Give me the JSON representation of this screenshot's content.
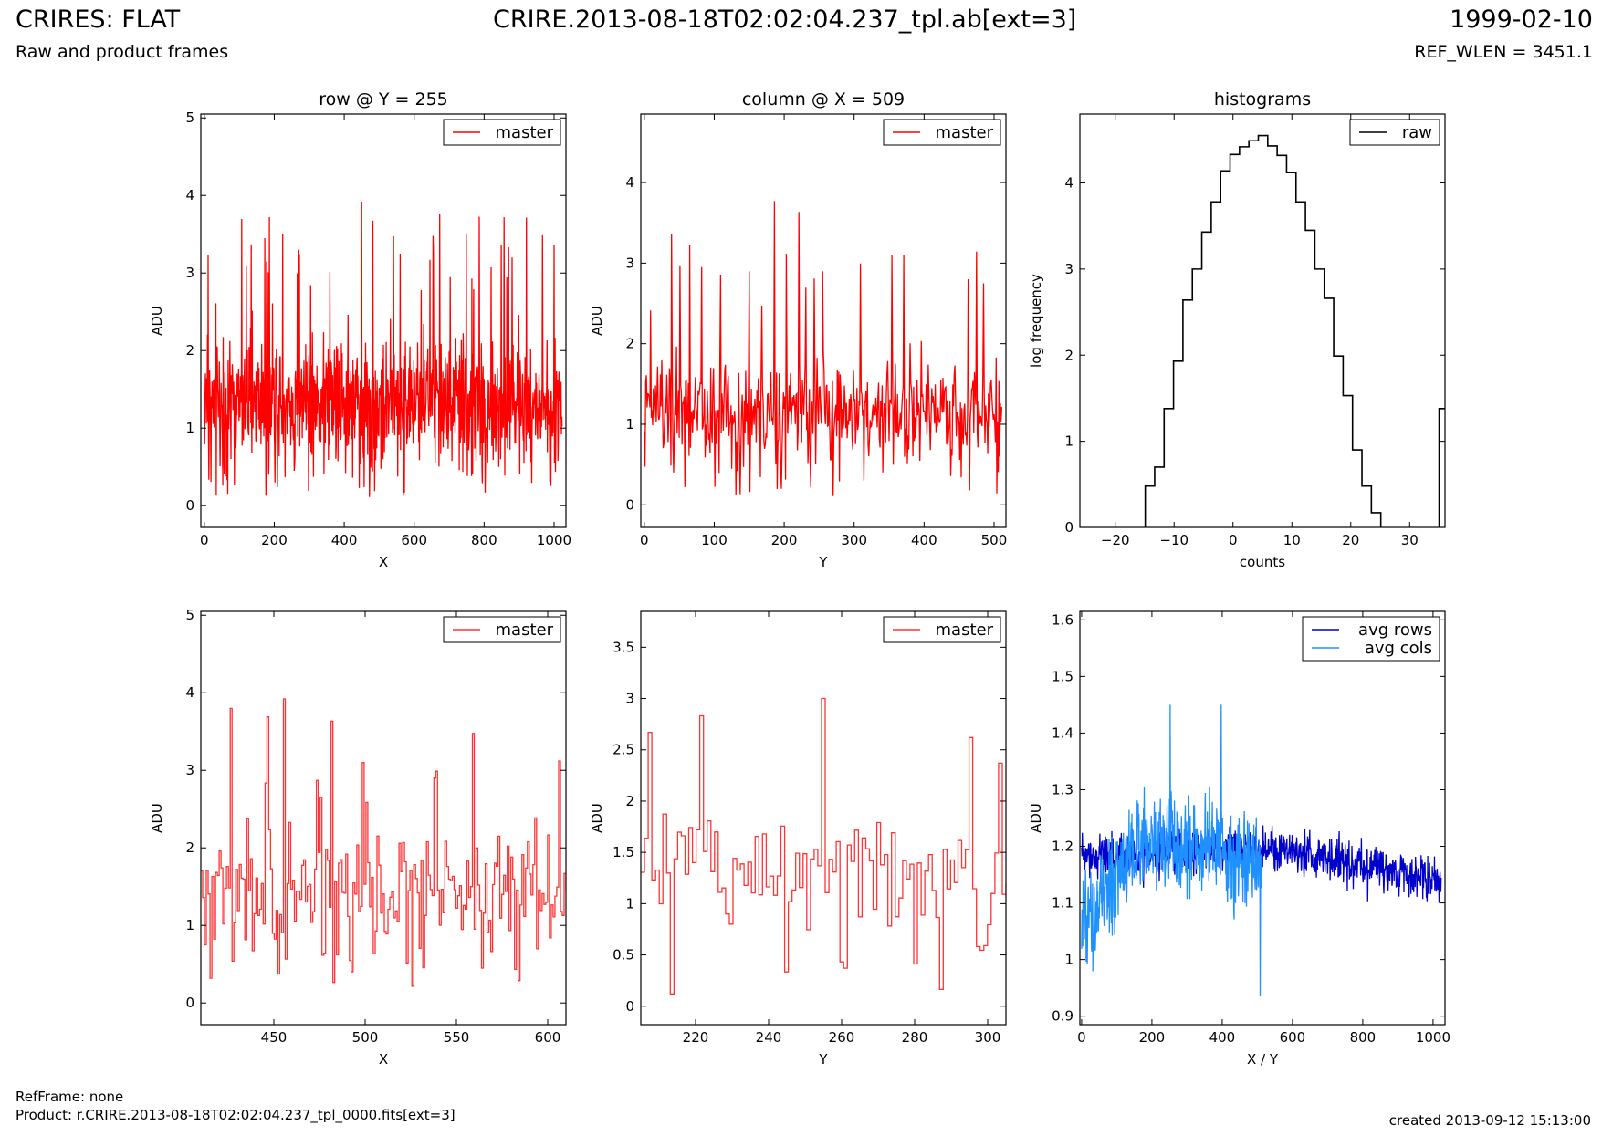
{
  "header": {
    "title_left": "CRIRES: FLAT",
    "title_center": "CRIRE.2013-08-18T02:02:04.237_tpl.ab[ext=3]",
    "title_right": "1999-02-10",
    "subtitle_left": "Raw and product frames",
    "subtitle_right": "REF_WLEN = 3451.1"
  },
  "footer": {
    "refframe": "RefFrame: none",
    "product": "Product: r.CRIRE.2013-08-18T02:02:04.237_tpl_0000.fits[ext=3]",
    "created": "created 2013-09-12 15:13:00"
  },
  "colors": {
    "red": "#ff0000",
    "red_light": "#ff3333",
    "blue": "#0000cc",
    "light_blue": "#1e90ff",
    "black": "#000000"
  },
  "chart_data": [
    {
      "type": "line",
      "title": "row @ Y = 255",
      "xlabel": "X",
      "ylabel": "ADU",
      "xlim": [
        -10,
        1034
      ],
      "ylim": [
        -0.28,
        5.05
      ],
      "xticks": [
        0,
        200,
        400,
        600,
        800,
        1000
      ],
      "yticks": [
        0,
        1,
        2,
        3,
        4,
        5
      ],
      "legend": "top-right",
      "series": [
        {
          "name": "master",
          "color": "#ff0000",
          "mode": "noise",
          "x_range": [
            0,
            1023
          ],
          "n": 1024,
          "mean": 1.35,
          "sigma": 0.55,
          "min": 0.1,
          "max": 3.9,
          "peaks": [
            [
              186,
              3.72
            ],
            [
              450,
              3.92
            ],
            [
              1000,
              3.36
            ],
            [
              270,
              3.3
            ],
            [
              560,
              3.25
            ],
            [
              655,
              3.28
            ],
            [
              880,
              3.2
            ],
            [
              120,
              3.1
            ]
          ]
        }
      ]
    },
    {
      "type": "line",
      "title": "column @ X = 509",
      "xlabel": "Y",
      "ylabel": "ADU",
      "xlim": [
        -5,
        517
      ],
      "ylim": [
        -0.28,
        4.85
      ],
      "xticks": [
        0,
        100,
        200,
        300,
        400,
        500
      ],
      "yticks": [
        0,
        1,
        2,
        3,
        4
      ],
      "legend": "top-right",
      "series": [
        {
          "name": "master",
          "color": "#ff0000",
          "mode": "noise",
          "x_range": [
            0,
            511
          ],
          "n": 512,
          "mean": 1.15,
          "sigma": 0.45,
          "min": 0.1,
          "max": 3.8,
          "peaks": [
            [
              186,
              3.77
            ],
            [
              82,
              2.95
            ],
            [
              354,
              3.1
            ],
            [
              255,
              2.9
            ],
            [
              150,
              2.9
            ],
            [
              463,
              2.8
            ]
          ]
        }
      ]
    },
    {
      "type": "step",
      "title": "histograms",
      "xlabel": "counts",
      "ylabel": "log frequency",
      "xlim": [
        -26,
        36
      ],
      "ylim": [
        0,
        4.8
      ],
      "xticks": [
        -20,
        -10,
        0,
        10,
        20,
        30
      ],
      "yticks": [
        0,
        1,
        2,
        3,
        4
      ],
      "legend": "top-right",
      "series": [
        {
          "name": "raw",
          "color": "#000000",
          "mode": "hist",
          "edges": [
            -14.9,
            -13.3,
            -11.7,
            -10.1,
            -8.5,
            -6.9,
            -5.3,
            -3.7,
            -2.1,
            -0.5,
            1.1,
            2.7,
            4.3,
            5.9,
            7.5,
            9.1,
            10.7,
            12.3,
            13.9,
            15.5,
            17.1,
            18.7,
            20.3,
            21.9,
            23.5,
            25.1
          ],
          "values": [
            0.48,
            0.7,
            1.38,
            1.93,
            2.64,
            3.0,
            3.43,
            3.78,
            4.14,
            4.33,
            4.42,
            4.49,
            4.55,
            4.43,
            4.32,
            4.12,
            3.78,
            3.45,
            3.0,
            2.66,
            1.99,
            1.53,
            0.9,
            0.48,
            0.17
          ],
          "extra_bins": [
            [
              35.0,
              36.0,
              1.38
            ]
          ]
        }
      ]
    },
    {
      "type": "step",
      "xlabel": "X",
      "ylabel": "ADU",
      "xlim": [
        410,
        610
      ],
      "ylim": [
        -0.28,
        5.05
      ],
      "xticks": [
        450,
        500,
        550,
        600
      ],
      "yticks": [
        0,
        1,
        2,
        3,
        4,
        5
      ],
      "legend": "top-right",
      "series": [
        {
          "name": "master",
          "color": "#ff3333",
          "mode": "noise-step",
          "x_range": [
            410,
            610
          ],
          "n": 200,
          "mean": 1.4,
          "sigma": 0.55,
          "min": 0.1,
          "max": 3.92,
          "peaks": [
            [
              455,
              3.92
            ],
            [
              498,
              3.1
            ],
            [
              538,
              2.9
            ],
            [
              606,
              3.12
            ],
            [
              475,
              2.65
            ]
          ]
        }
      ]
    },
    {
      "type": "step",
      "xlabel": "Y",
      "ylabel": "ADU",
      "xlim": [
        205,
        305
      ],
      "ylim": [
        -0.18,
        3.85
      ],
      "xticks": [
        220,
        240,
        260,
        280,
        300
      ],
      "yticks": [
        0.0,
        0.5,
        1.0,
        1.5,
        2.0,
        2.5,
        3.0,
        3.5
      ],
      "legend": "top-right",
      "series": [
        {
          "name": "master",
          "color": "#ff3333",
          "mode": "noise-step",
          "x_range": [
            205,
            305
          ],
          "n": 100,
          "mean": 1.35,
          "sigma": 0.45,
          "min": 0.12,
          "max": 3.0,
          "peaks": [
            [
              207,
              2.67
            ],
            [
              254,
              3.0
            ],
            [
              213,
              0.12
            ],
            [
              295,
              2.62
            ],
            [
              303,
              2.37
            ]
          ]
        }
      ]
    },
    {
      "type": "line",
      "xlabel": "X / Y",
      "ylabel": "ADU",
      "xlim": [
        -5,
        1034
      ],
      "ylim": [
        0.885,
        1.615
      ],
      "xticks": [
        0,
        200,
        400,
        600,
        800,
        1000
      ],
      "yticks": [
        0.9,
        1.0,
        1.1,
        1.2,
        1.3,
        1.4,
        1.5,
        1.6
      ],
      "legend": "top-right",
      "series": [
        {
          "name": "avg rows",
          "color": "#0000cc",
          "mode": "trend",
          "x_range": [
            0,
            1023
          ],
          "n": 1024,
          "base": [
            1.19,
            1.18,
            1.2,
            1.19,
            1.16,
            1.14
          ],
          "sigma": 0.028
        },
        {
          "name": "avg cols",
          "color": "#1e90ff",
          "mode": "trend",
          "x_range": [
            0,
            511
          ],
          "n": 512,
          "base": [
            1.06,
            1.18,
            1.22,
            1.2,
            1.16
          ],
          "sigma": 0.06,
          "peaks": [
            [
              252,
              1.45
            ],
            [
              397,
              1.45
            ],
            [
              508,
              0.935
            ]
          ]
        }
      ]
    }
  ]
}
